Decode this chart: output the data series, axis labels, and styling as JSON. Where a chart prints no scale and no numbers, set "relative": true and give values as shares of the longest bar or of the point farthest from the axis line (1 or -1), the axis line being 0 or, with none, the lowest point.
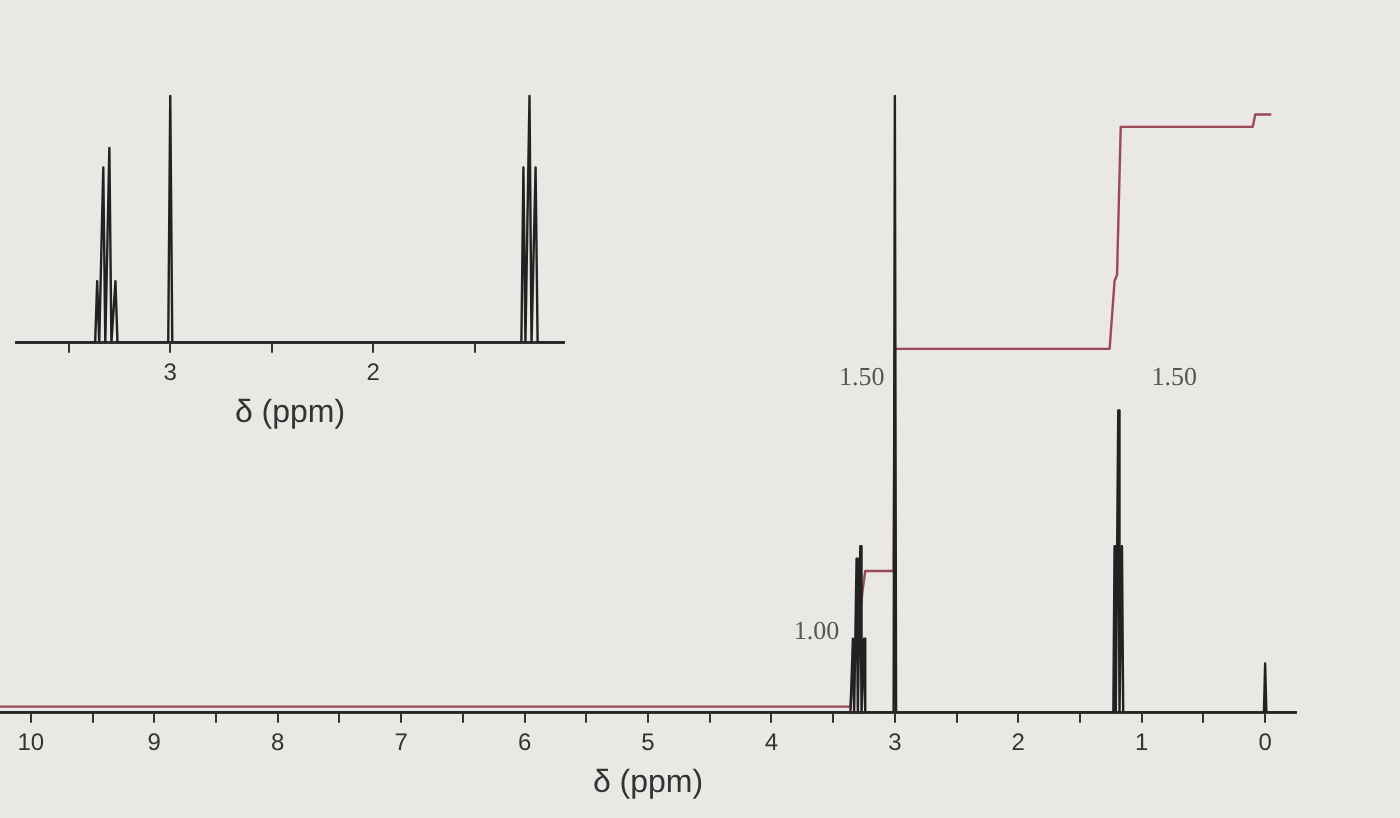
{
  "chart_data": [
    {
      "type": "line",
      "relative": true,
      "xlabel": "δ (ppm)",
      "xlim": [
        10.25,
        -0.25
      ],
      "xticks": [
        10,
        {
          "value": 9.5,
          "label": null
        },
        9,
        {
          "value": 8.5,
          "label": null
        },
        8,
        {
          "value": 7.5,
          "label": null
        },
        7,
        {
          "value": 6.5,
          "label": null
        },
        6,
        {
          "value": 5.5,
          "label": null
        },
        5,
        {
          "value": 4.5,
          "label": null
        },
        4,
        {
          "value": 3.5,
          "label": null
        },
        3,
        {
          "value": 2.5,
          "label": null
        },
        2,
        {
          "value": 1.5,
          "label": null
        },
        1,
        {
          "value": 0.5,
          "label": null
        },
        0
      ],
      "grid": false,
      "legend": false,
      "marker": "none",
      "series": [
        {
          "color": "#222222",
          "x": [
            10.25,
            3.36,
            3.34,
            3.33,
            3.31,
            3.3,
            3.28,
            3.27,
            3.25,
            3.24,
            3.01,
            3.0,
            2.99,
            1.23,
            1.22,
            1.21,
            1.19,
            1.18,
            1.16,
            1.15,
            0.01,
            0,
            -0.01,
            -0.25
          ],
          "values": [
            0,
            0,
            0.12,
            0,
            0.25,
            0,
            0.27,
            0,
            0.12,
            0,
            0,
            1,
            0,
            0,
            0.27,
            0,
            0.49,
            0,
            0.27,
            0,
            0,
            0.08,
            0,
            0
          ]
        },
        {
          "color": "#9b4a55",
          "x": [
            10.25,
            3.36,
            3.3,
            3.26,
            3.24,
            3.01,
            3.0,
            1.26,
            1.22,
            1.2,
            1.17,
            0.1,
            0.08,
            -0.05
          ],
          "values": [
            0.01,
            0.01,
            0.13,
            0.2,
            0.23,
            0.23,
            0.59,
            0.59,
            0.7,
            0.71,
            0.95,
            0.95,
            0.97,
            0.97
          ]
        }
      ],
      "annotations": [
        "1.00",
        "1.50",
        "1.50"
      ]
    },
    {
      "type": "line",
      "relative": true,
      "xlabel": "δ (ppm)",
      "xlim": [
        3.76,
        1.06
      ],
      "xticks": [
        {
          "value": 3.5,
          "label": null
        },
        3,
        {
          "value": 2.5,
          "label": null
        },
        2,
        {
          "value": 1.5,
          "label": null
        }
      ],
      "grid": false,
      "legend": false,
      "marker": "none",
      "series": [
        {
          "color": "#222222",
          "x": [
            3.76,
            3.37,
            3.36,
            3.35,
            3.33,
            3.32,
            3.3,
            3.29,
            3.27,
            3.26,
            3.01,
            3.0,
            2.99,
            1.27,
            1.26,
            1.25,
            1.23,
            1.22,
            1.2,
            1.19,
            1.06
          ],
          "values": [
            0,
            0,
            0.25,
            0,
            0.71,
            0,
            0.79,
            0,
            0.25,
            0,
            0,
            1,
            0,
            0,
            0.71,
            0,
            1,
            0,
            0.71,
            0,
            0
          ]
        }
      ]
    }
  ]
}
